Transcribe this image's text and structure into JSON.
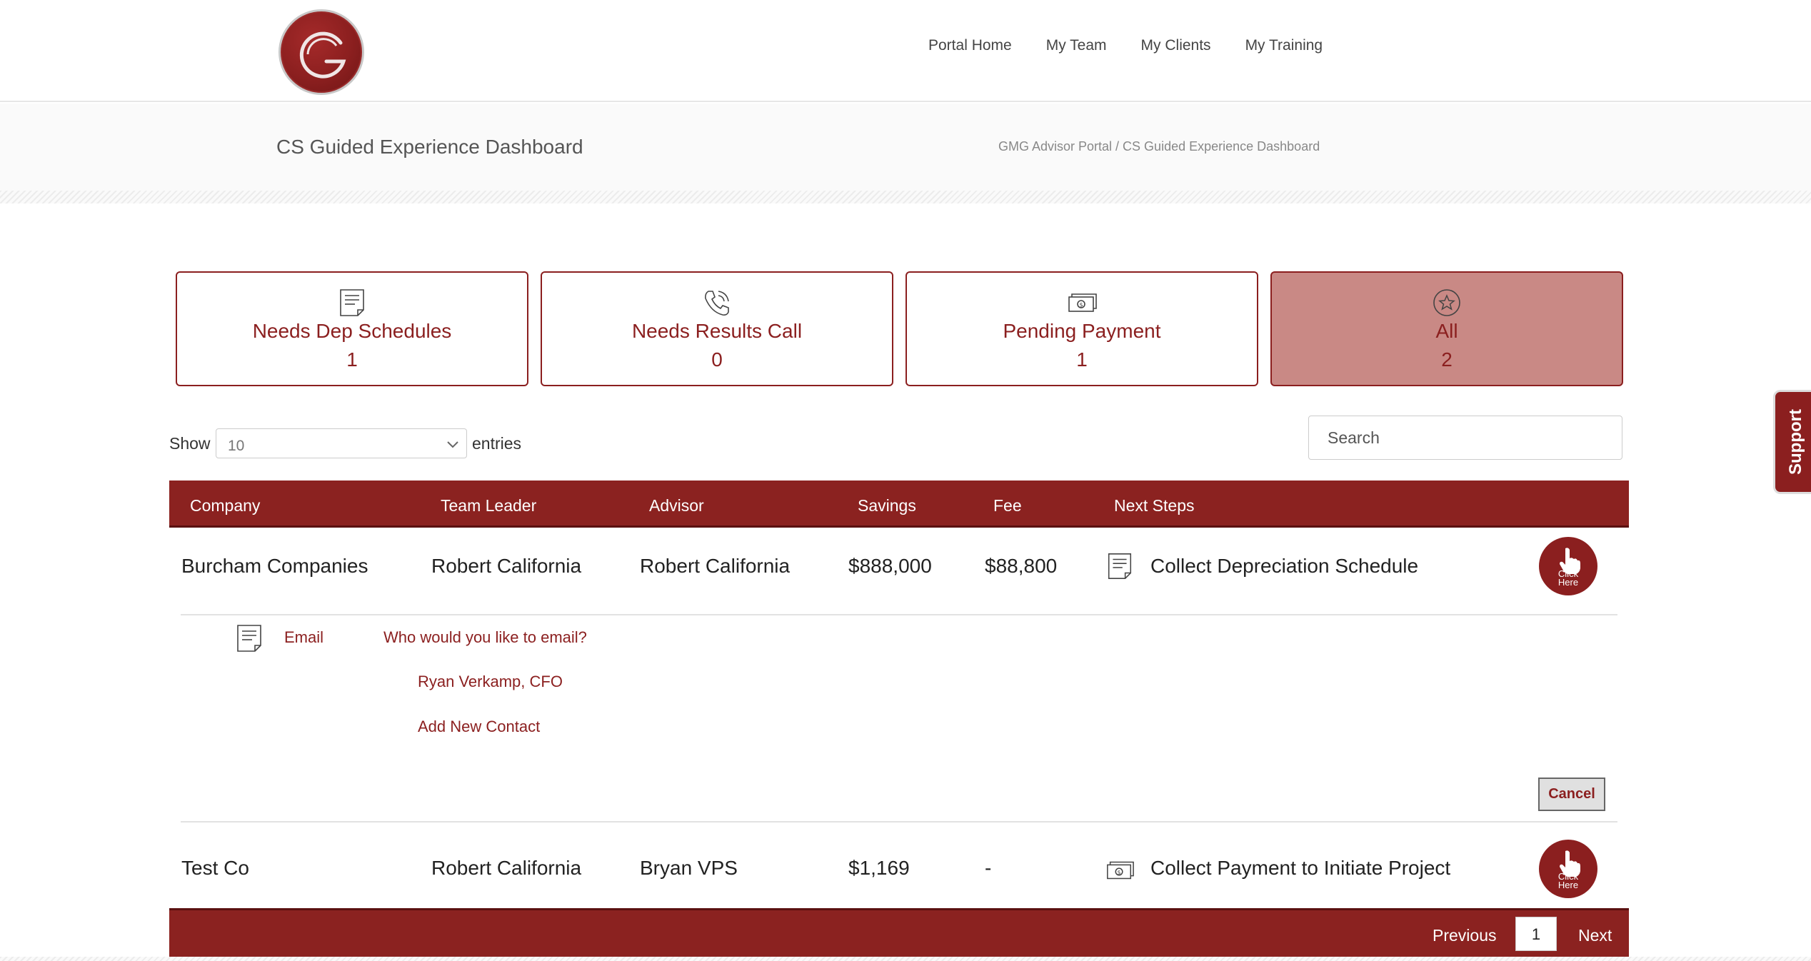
{
  "nav": {
    "items": [
      {
        "label": "Portal Home"
      },
      {
        "label": "My Team"
      },
      {
        "label": "My Clients"
      },
      {
        "label": "My Training"
      }
    ]
  },
  "header": {
    "title": "CS Guided Experience Dashboard",
    "breadcrumb": "GMG Advisor Portal / CS Guided Experience Dashboard"
  },
  "cards": [
    {
      "label": "Needs Dep Schedules",
      "count": "1",
      "icon": "document-icon"
    },
    {
      "label": "Needs Results Call",
      "count": "0",
      "icon": "phone-icon"
    },
    {
      "label": "Pending Payment",
      "count": "1",
      "icon": "money-icon"
    },
    {
      "label": "All",
      "count": "2",
      "icon": "star-icon",
      "active": true
    }
  ],
  "controls": {
    "show_label": "Show",
    "entries_value": "10",
    "entries_label": "entries",
    "search_placeholder": "Search"
  },
  "support_label": "Support",
  "table": {
    "columns": [
      "Company",
      "Team Leader",
      "Advisor",
      "Savings",
      "Fee",
      "Next Steps"
    ],
    "rows": [
      {
        "company": "Burcham Companies",
        "team_leader": "Robert California",
        "advisor": "Robert California",
        "savings": "$888,000",
        "fee": "$88,800",
        "next_step": "Collect Depreciation Schedule",
        "icon": "document-icon"
      },
      {
        "company": "Test Co",
        "team_leader": "Robert California",
        "advisor": "Bryan VPS",
        "savings": "$1,169",
        "fee": "-",
        "next_step": "Collect Payment to Initiate Project",
        "icon": "money-icon"
      }
    ],
    "click_label_1": "Click",
    "click_label_2": "Here"
  },
  "email_panel": {
    "email_label": "Email",
    "question": "Who would you like to email?",
    "contacts": [
      "Ryan Verkamp, CFO",
      "Add New Contact"
    ],
    "cancel_label": "Cancel"
  },
  "pagination": {
    "previous": "Previous",
    "current_page": "1",
    "next": "Next"
  },
  "colors": {
    "brand": "#8b1f1f",
    "active_card": "#c98985"
  }
}
